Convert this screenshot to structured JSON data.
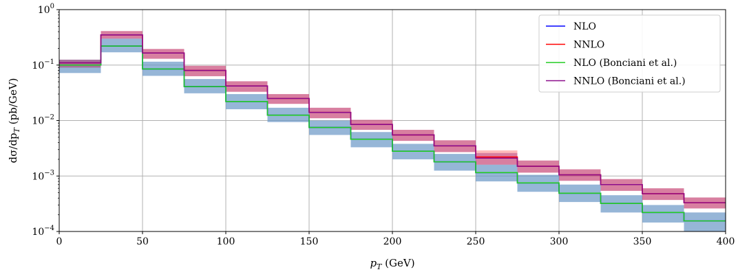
{
  "chart_data": {
    "type": "line",
    "style": "step-histogram-with-uncertainty-bands",
    "xlabel": "p_T (GeV)",
    "ylabel": "dσ/dp_T (pb/GeV)",
    "xlim": [
      0,
      400
    ],
    "ylim": [
      0.0001,
      1
    ],
    "yscale": "log",
    "grid": true,
    "legend_position": "top-right",
    "x_ticks": [
      0,
      50,
      100,
      150,
      200,
      250,
      300,
      350,
      400
    ],
    "y_ticks": [
      {
        "value": 0.0001,
        "base": "10",
        "exp": "−4"
      },
      {
        "value": 0.001,
        "base": "10",
        "exp": "−3"
      },
      {
        "value": 0.01,
        "base": "10",
        "exp": "−2"
      },
      {
        "value": 0.1,
        "base": "10",
        "exp": "−1"
      },
      {
        "value": 1,
        "base": "10",
        "exp": "0"
      }
    ],
    "bin_edges": [
      0,
      25,
      50,
      75,
      100,
      125,
      150,
      175,
      200,
      225,
      250,
      275,
      300,
      325,
      350,
      375,
      400
    ],
    "series": [
      {
        "name": "NLO",
        "color": "#0000ff",
        "band_color": "#7b7bff",
        "values": [
          0.1,
          0.22,
          0.085,
          0.041,
          0.022,
          0.0125,
          0.0075,
          0.0046,
          0.0028,
          0.0018,
          0.00115,
          0.00075,
          0.00049,
          0.00032,
          0.00022,
          0.000155
        ],
        "band_low": [
          0.072,
          0.17,
          0.064,
          0.031,
          0.016,
          0.0094,
          0.0055,
          0.0033,
          0.002,
          0.00125,
          0.0008,
          0.00052,
          0.00034,
          0.00022,
          0.000145,
          0.0001
        ],
        "band_high": [
          0.125,
          0.3,
          0.115,
          0.056,
          0.03,
          0.017,
          0.01,
          0.0062,
          0.0038,
          0.0025,
          0.0016,
          0.00105,
          0.0007,
          0.00045,
          0.0003,
          0.00022
        ]
      },
      {
        "name": "NNLO",
        "color": "#ff0000",
        "band_color": "#ff6b6b",
        "values": [
          0.11,
          0.35,
          0.165,
          0.08,
          0.042,
          0.025,
          0.014,
          0.0085,
          0.0055,
          0.0035,
          0.0022,
          0.0015,
          0.00105,
          0.0007,
          0.00048,
          0.00033
        ],
        "band_low": [
          0.09,
          0.3,
          0.13,
          0.063,
          0.033,
          0.02,
          0.011,
          0.0068,
          0.0043,
          0.0027,
          0.0016,
          0.00115,
          0.00082,
          0.00054,
          0.00037,
          0.00026
        ],
        "band_high": [
          0.125,
          0.41,
          0.195,
          0.097,
          0.051,
          0.03,
          0.017,
          0.0103,
          0.0068,
          0.0044,
          0.0029,
          0.0019,
          0.00132,
          0.00088,
          0.0006,
          0.00041
        ]
      },
      {
        "name": "NLO (Bonciani et al.)",
        "color": "#22cc22",
        "band_color": "#5fa6a6",
        "values": [
          0.1,
          0.22,
          0.085,
          0.041,
          0.022,
          0.0125,
          0.0075,
          0.0046,
          0.0028,
          0.0018,
          0.00115,
          0.00075,
          0.00049,
          0.00032,
          0.00022,
          0.000155
        ],
        "band_low": [
          0.072,
          0.17,
          0.064,
          0.031,
          0.016,
          0.0094,
          0.0055,
          0.0033,
          0.002,
          0.00125,
          0.0008,
          0.00052,
          0.00034,
          0.00022,
          0.000145,
          0.0001
        ],
        "band_high": [
          0.125,
          0.3,
          0.115,
          0.056,
          0.03,
          0.017,
          0.01,
          0.0062,
          0.0038,
          0.0025,
          0.0016,
          0.00105,
          0.0007,
          0.00045,
          0.0003,
          0.00022
        ]
      },
      {
        "name": "NNLO (Bonciani et al.)",
        "color": "#8b0c8b",
        "band_color": "#a8357e",
        "values": [
          0.11,
          0.35,
          0.165,
          0.08,
          0.042,
          0.025,
          0.014,
          0.0085,
          0.0055,
          0.0035,
          0.0021,
          0.0015,
          0.00105,
          0.0007,
          0.00048,
          0.00033
        ],
        "band_low": [
          0.09,
          0.3,
          0.13,
          0.063,
          0.033,
          0.02,
          0.011,
          0.0068,
          0.0043,
          0.0027,
          0.0016,
          0.00115,
          0.00082,
          0.00054,
          0.00037,
          0.00026
        ],
        "band_high": [
          0.125,
          0.41,
          0.195,
          0.097,
          0.051,
          0.03,
          0.017,
          0.0103,
          0.0068,
          0.0044,
          0.0026,
          0.0019,
          0.00132,
          0.00088,
          0.0006,
          0.00041
        ]
      }
    ]
  }
}
